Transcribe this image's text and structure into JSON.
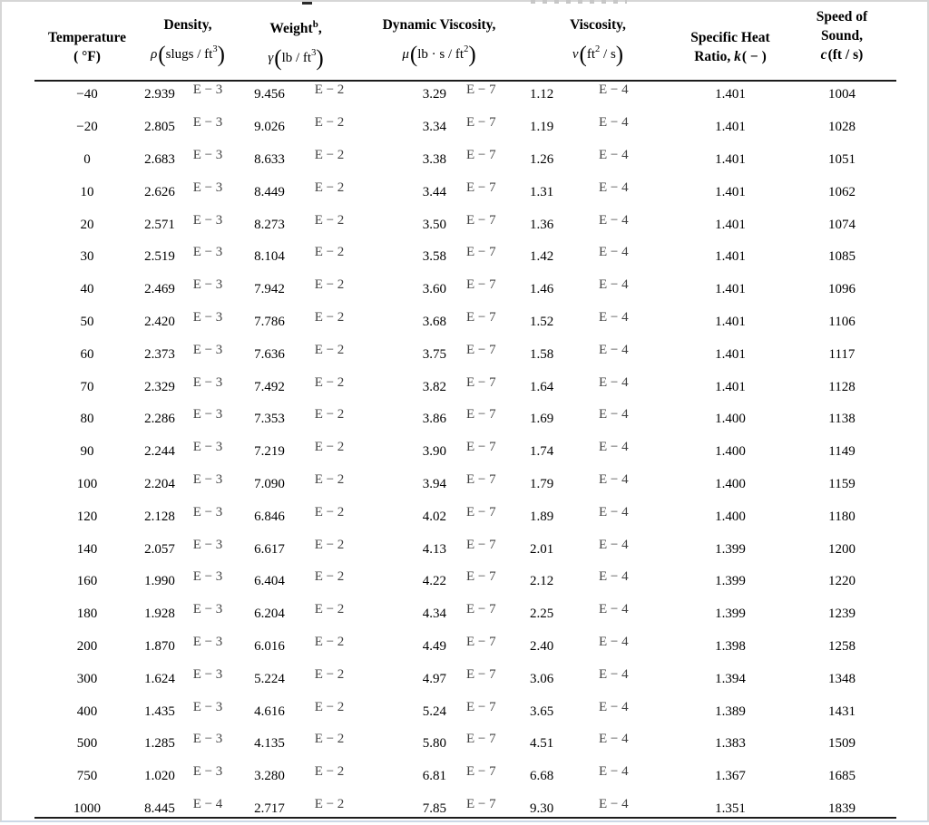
{
  "colors": {
    "rule": "#1c1c1c",
    "frame": "#d6d6d6",
    "frame_bottom": "#ccd8e6",
    "text": "#000000",
    "exponent_text": "#424242"
  },
  "header": {
    "temperature": {
      "line1": "Temperature",
      "line2": "( °F)"
    },
    "density": {
      "title": "Density,",
      "formula": [
        {
          "t": "sym",
          "v": "ρ"
        },
        {
          "t": "big",
          "v": "("
        },
        {
          "t": "txt",
          "v": "slugs / ft"
        },
        {
          "t": "sup",
          "v": "3"
        },
        {
          "t": "big",
          "v": ")"
        }
      ]
    },
    "weight": {
      "title_word": "Weight",
      "title_sup": "b",
      "title_comma": ",",
      "formula": [
        {
          "t": "sym",
          "v": "γ"
        },
        {
          "t": "big",
          "v": "("
        },
        {
          "t": "txt",
          "v": "lb / ft"
        },
        {
          "t": "sup",
          "v": "3"
        },
        {
          "t": "big",
          "v": ")"
        }
      ]
    },
    "dynamic_viscosity": {
      "title": "Dynamic Viscosity,",
      "formula": [
        {
          "t": "sym",
          "v": "μ"
        },
        {
          "t": "big",
          "v": "("
        },
        {
          "t": "txt",
          "v": "lb · s / ft"
        },
        {
          "t": "sup",
          "v": "2"
        },
        {
          "t": "big",
          "v": ")"
        }
      ]
    },
    "kinematic_viscosity": {
      "title": "Viscosity,",
      "formula": [
        {
          "t": "sym",
          "v": "ν"
        },
        {
          "t": "big",
          "v": "("
        },
        {
          "t": "txt",
          "v": "ft"
        },
        {
          "t": "sup",
          "v": "2"
        },
        {
          "t": "txt",
          "v": " / s"
        },
        {
          "t": "big",
          "v": ")"
        }
      ]
    },
    "specific_heat": {
      "line1": "Specific Heat",
      "line2": [
        {
          "t": "txt",
          "v": "Ratio, "
        },
        {
          "t": "sym",
          "v": "k"
        },
        {
          "t": "txt",
          "v": "( − )"
        }
      ]
    },
    "speed_of_sound": {
      "line1": "Speed of",
      "line2": "Sound,",
      "line3": [
        {
          "t": "sym",
          "v": "c"
        },
        {
          "t": "txt",
          "v": "(ft / s)"
        }
      ]
    }
  },
  "table": {
    "rows": [
      [
        "−40",
        "2.939",
        "E − 3",
        "9.456",
        "E − 2",
        "3.29",
        "E − 7",
        "1.12",
        "E − 4",
        "1.401",
        "1004"
      ],
      [
        "−20",
        "2.805",
        "E − 3",
        "9.026",
        "E − 2",
        "3.34",
        "E − 7",
        "1.19",
        "E − 4",
        "1.401",
        "1028"
      ],
      [
        "0",
        "2.683",
        "E − 3",
        "8.633",
        "E − 2",
        "3.38",
        "E − 7",
        "1.26",
        "E − 4",
        "1.401",
        "1051"
      ],
      [
        "10",
        "2.626",
        "E − 3",
        "8.449",
        "E − 2",
        "3.44",
        "E − 7",
        "1.31",
        "E − 4",
        "1.401",
        "1062"
      ],
      [
        "20",
        "2.571",
        "E − 3",
        "8.273",
        "E − 2",
        "3.50",
        "E − 7",
        "1.36",
        "E − 4",
        "1.401",
        "1074"
      ],
      [
        "30",
        "2.519",
        "E − 3",
        "8.104",
        "E − 2",
        "3.58",
        "E − 7",
        "1.42",
        "E − 4",
        "1.401",
        "1085"
      ],
      [
        "40",
        "2.469",
        "E − 3",
        "7.942",
        "E − 2",
        "3.60",
        "E − 7",
        "1.46",
        "E − 4",
        "1.401",
        "1096"
      ],
      [
        "50",
        "2.420",
        "E − 3",
        "7.786",
        "E − 2",
        "3.68",
        "E − 7",
        "1.52",
        "E − 4",
        "1.401",
        "1106"
      ],
      [
        "60",
        "2.373",
        "E − 3",
        "7.636",
        "E − 2",
        "3.75",
        "E − 7",
        "1.58",
        "E − 4",
        "1.401",
        "1117"
      ],
      [
        "70",
        "2.329",
        "E − 3",
        "7.492",
        "E − 2",
        "3.82",
        "E − 7",
        "1.64",
        "E − 4",
        "1.401",
        "1128"
      ],
      [
        "80",
        "2.286",
        "E − 3",
        "7.353",
        "E − 2",
        "3.86",
        "E − 7",
        "1.69",
        "E − 4",
        "1.400",
        "1138"
      ],
      [
        "90",
        "2.244",
        "E − 3",
        "7.219",
        "E − 2",
        "3.90",
        "E − 7",
        "1.74",
        "E − 4",
        "1.400",
        "1149"
      ],
      [
        "100",
        "2.204",
        "E − 3",
        "7.090",
        "E − 2",
        "3.94",
        "E − 7",
        "1.79",
        "E − 4",
        "1.400",
        "1159"
      ],
      [
        "120",
        "2.128",
        "E − 3",
        "6.846",
        "E − 2",
        "4.02",
        "E − 7",
        "1.89",
        "E − 4",
        "1.400",
        "1180"
      ],
      [
        "140",
        "2.057",
        "E − 3",
        "6.617",
        "E − 2",
        "4.13",
        "E − 7",
        "2.01",
        "E − 4",
        "1.399",
        "1200"
      ],
      [
        "160",
        "1.990",
        "E − 3",
        "6.404",
        "E − 2",
        "4.22",
        "E − 7",
        "2.12",
        "E − 4",
        "1.399",
        "1220"
      ],
      [
        "180",
        "1.928",
        "E − 3",
        "6.204",
        "E − 2",
        "4.34",
        "E − 7",
        "2.25",
        "E − 4",
        "1.399",
        "1239"
      ],
      [
        "200",
        "1.870",
        "E − 3",
        "6.016",
        "E − 2",
        "4.49",
        "E − 7",
        "2.40",
        "E − 4",
        "1.398",
        "1258"
      ],
      [
        "300",
        "1.624",
        "E − 3",
        "5.224",
        "E − 2",
        "4.97",
        "E − 7",
        "3.06",
        "E − 4",
        "1.394",
        "1348"
      ],
      [
        "400",
        "1.435",
        "E − 3",
        "4.616",
        "E − 2",
        "5.24",
        "E − 7",
        "3.65",
        "E − 4",
        "1.389",
        "1431"
      ],
      [
        "500",
        "1.285",
        "E − 3",
        "4.135",
        "E − 2",
        "5.80",
        "E − 7",
        "4.51",
        "E − 4",
        "1.383",
        "1509"
      ],
      [
        "750",
        "1.020",
        "E − 3",
        "3.280",
        "E − 2",
        "6.81",
        "E − 7",
        "6.68",
        "E − 4",
        "1.367",
        "1685"
      ],
      [
        "1000",
        "8.445",
        "E − 4",
        "2.717",
        "E − 2",
        "7.85",
        "E − 7",
        "9.30",
        "E − 4",
        "1.351",
        "1839"
      ]
    ]
  }
}
